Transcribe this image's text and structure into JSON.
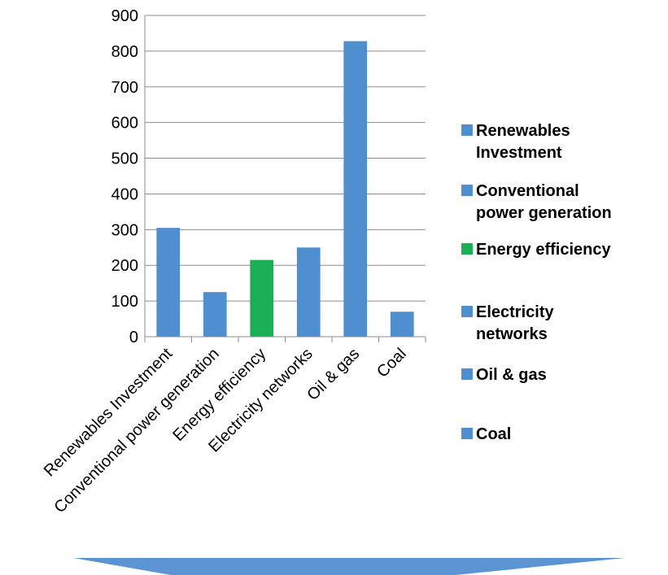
{
  "chart_data": {
    "type": "bar",
    "categories": [
      "Renewables Investment",
      "Conventional power generation",
      "Energy efficiency",
      "Electricity networks",
      "Oil & gas",
      "Coal"
    ],
    "values": [
      305,
      125,
      215,
      250,
      828,
      70
    ],
    "colors": [
      "#4f8fd0",
      "#4f8fd0",
      "#1aaf54",
      "#4f8fd0",
      "#4f8fd0",
      "#4f8fd0"
    ],
    "ylim": [
      0,
      900
    ],
    "yticks": [
      "0",
      "100",
      "200",
      "300",
      "400",
      "500",
      "600",
      "700",
      "800",
      "900"
    ],
    "grid": true,
    "legend_position": "right",
    "legend": [
      {
        "lines": [
          "Renewables",
          "Investment"
        ],
        "color": "#4f8fd0"
      },
      {
        "lines": [
          "Conventional",
          "power generation"
        ],
        "color": "#4f8fd0"
      },
      {
        "lines": [
          "Energy efficiency"
        ],
        "color": "#1aaf54"
      },
      {
        "lines": [
          "Electricity",
          "networks"
        ],
        "color": "#4f8fd0"
      },
      {
        "lines": [
          "Oil & gas"
        ],
        "color": "#4f8fd0"
      },
      {
        "lines": [
          "Coal"
        ],
        "color": "#4f8fd0"
      }
    ]
  },
  "decoration": {
    "arrow_color": "#5b93d3"
  }
}
